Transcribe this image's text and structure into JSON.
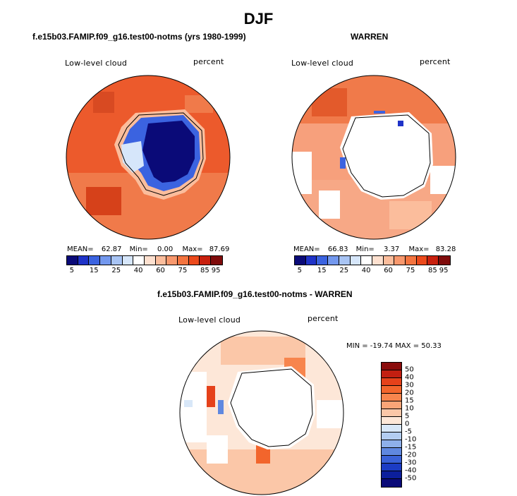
{
  "title": "DJF",
  "panels": [
    {
      "header": "f.e15b03.FAMIP.f09_g16.test00-notms (yrs 1980-1999)",
      "variable": "Low-level cloud",
      "units": "percent",
      "stats": {
        "mean_label": "MEAN=",
        "mean": "62.87",
        "min_label": "Min=",
        "min": "0.00",
        "max_label": "Max=",
        "max": "87.69"
      }
    },
    {
      "header": "WARREN",
      "variable": "Low-level cloud",
      "units": "percent",
      "stats": {
        "mean_label": "MEAN=",
        "mean": "66.83",
        "min_label": "Min=",
        "min": "3.37",
        "max_label": "Max=",
        "max": "83.28"
      }
    },
    {
      "header": "f.e15b03.FAMIP.f09_g16.test00-notms - WARREN",
      "variable": "Low-level cloud",
      "units": "percent",
      "stats": {
        "minmax": "MIN = -19.74 MAX =  50.33"
      }
    }
  ],
  "colorbar_abs": {
    "colors": [
      "#0a0a78",
      "#1f33c8",
      "#3b63e0",
      "#7398ee",
      "#a8c4f4",
      "#d6e6fa",
      "#ffffff",
      "#fde0cf",
      "#fbbd9c",
      "#f8986d",
      "#f4743f",
      "#ec4a1c",
      "#c8200e",
      "#7f0b0b"
    ],
    "labels": [
      "5",
      "15",
      "25",
      "40",
      "60",
      "75",
      "85",
      "95"
    ]
  },
  "colorbar_diff": {
    "colors": [
      "#8a0c0c",
      "#c31f11",
      "#e5411a",
      "#f2652c",
      "#f7854d",
      "#f9a577",
      "#fbc7a8",
      "#fde7d8",
      "#d8e7f8",
      "#b3cdf1",
      "#8eb0ea",
      "#5f88e0",
      "#3a62d8",
      "#1c3cc4",
      "#0c1f9c",
      "#0a0a78"
    ],
    "labels": [
      "50",
      "40",
      "30",
      "20",
      "15",
      "10",
      "5",
      "0",
      "-5",
      "-10",
      "-15",
      "-20",
      "-30",
      "-40",
      "-50"
    ]
  }
}
